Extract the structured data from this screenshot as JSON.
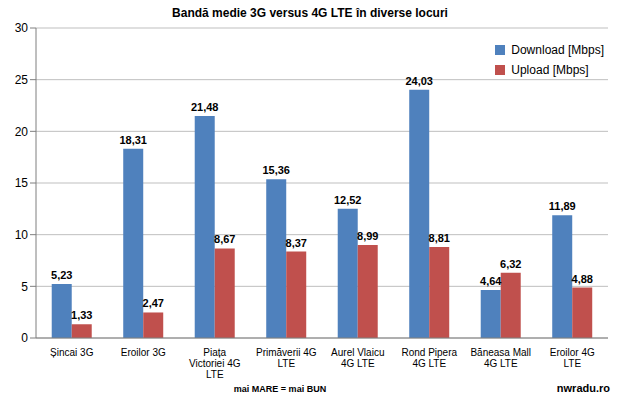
{
  "chart_data": {
    "type": "bar",
    "title": "Bandă medie 3G versus 4G LTE în diverse locuri",
    "categories": [
      "Șincai 3G",
      "Eroilor 3G",
      "Piața Victoriei 4G LTE",
      "Primăverii 4G LTE",
      "Aurel Vlaicu 4G LTE",
      "Rond Pipera 4G LTE",
      "Băneasa Mall 4G LTE",
      "Eroilor 4G LTE"
    ],
    "series": [
      {
        "name": "Download [Mbps]",
        "color": "#4f81bd",
        "values": [
          5.23,
          18.31,
          21.48,
          15.36,
          12.52,
          24.03,
          4.64,
          11.89
        ],
        "value_labels": [
          "5,23",
          "18,31",
          "21,48",
          "15,36",
          "12,52",
          "24,03",
          "4,64",
          "11,89"
        ]
      },
      {
        "name": "Upload [Mbps]",
        "color": "#c0504d",
        "values": [
          1.33,
          2.47,
          8.67,
          8.37,
          8.99,
          8.81,
          6.32,
          4.88
        ],
        "value_labels": [
          "1,33",
          "2,47",
          "8,67",
          "8,37",
          "8,99",
          "8,81",
          "6,32",
          "4,88"
        ]
      }
    ],
    "ylim": [
      0,
      30
    ],
    "yticks": [
      0,
      5,
      10,
      15,
      20,
      25,
      30
    ],
    "grid": true,
    "legend": "upper right",
    "data_labels": true,
    "annotations": [
      "mai MARE = mai BUN",
      "nwradu.ro"
    ]
  }
}
